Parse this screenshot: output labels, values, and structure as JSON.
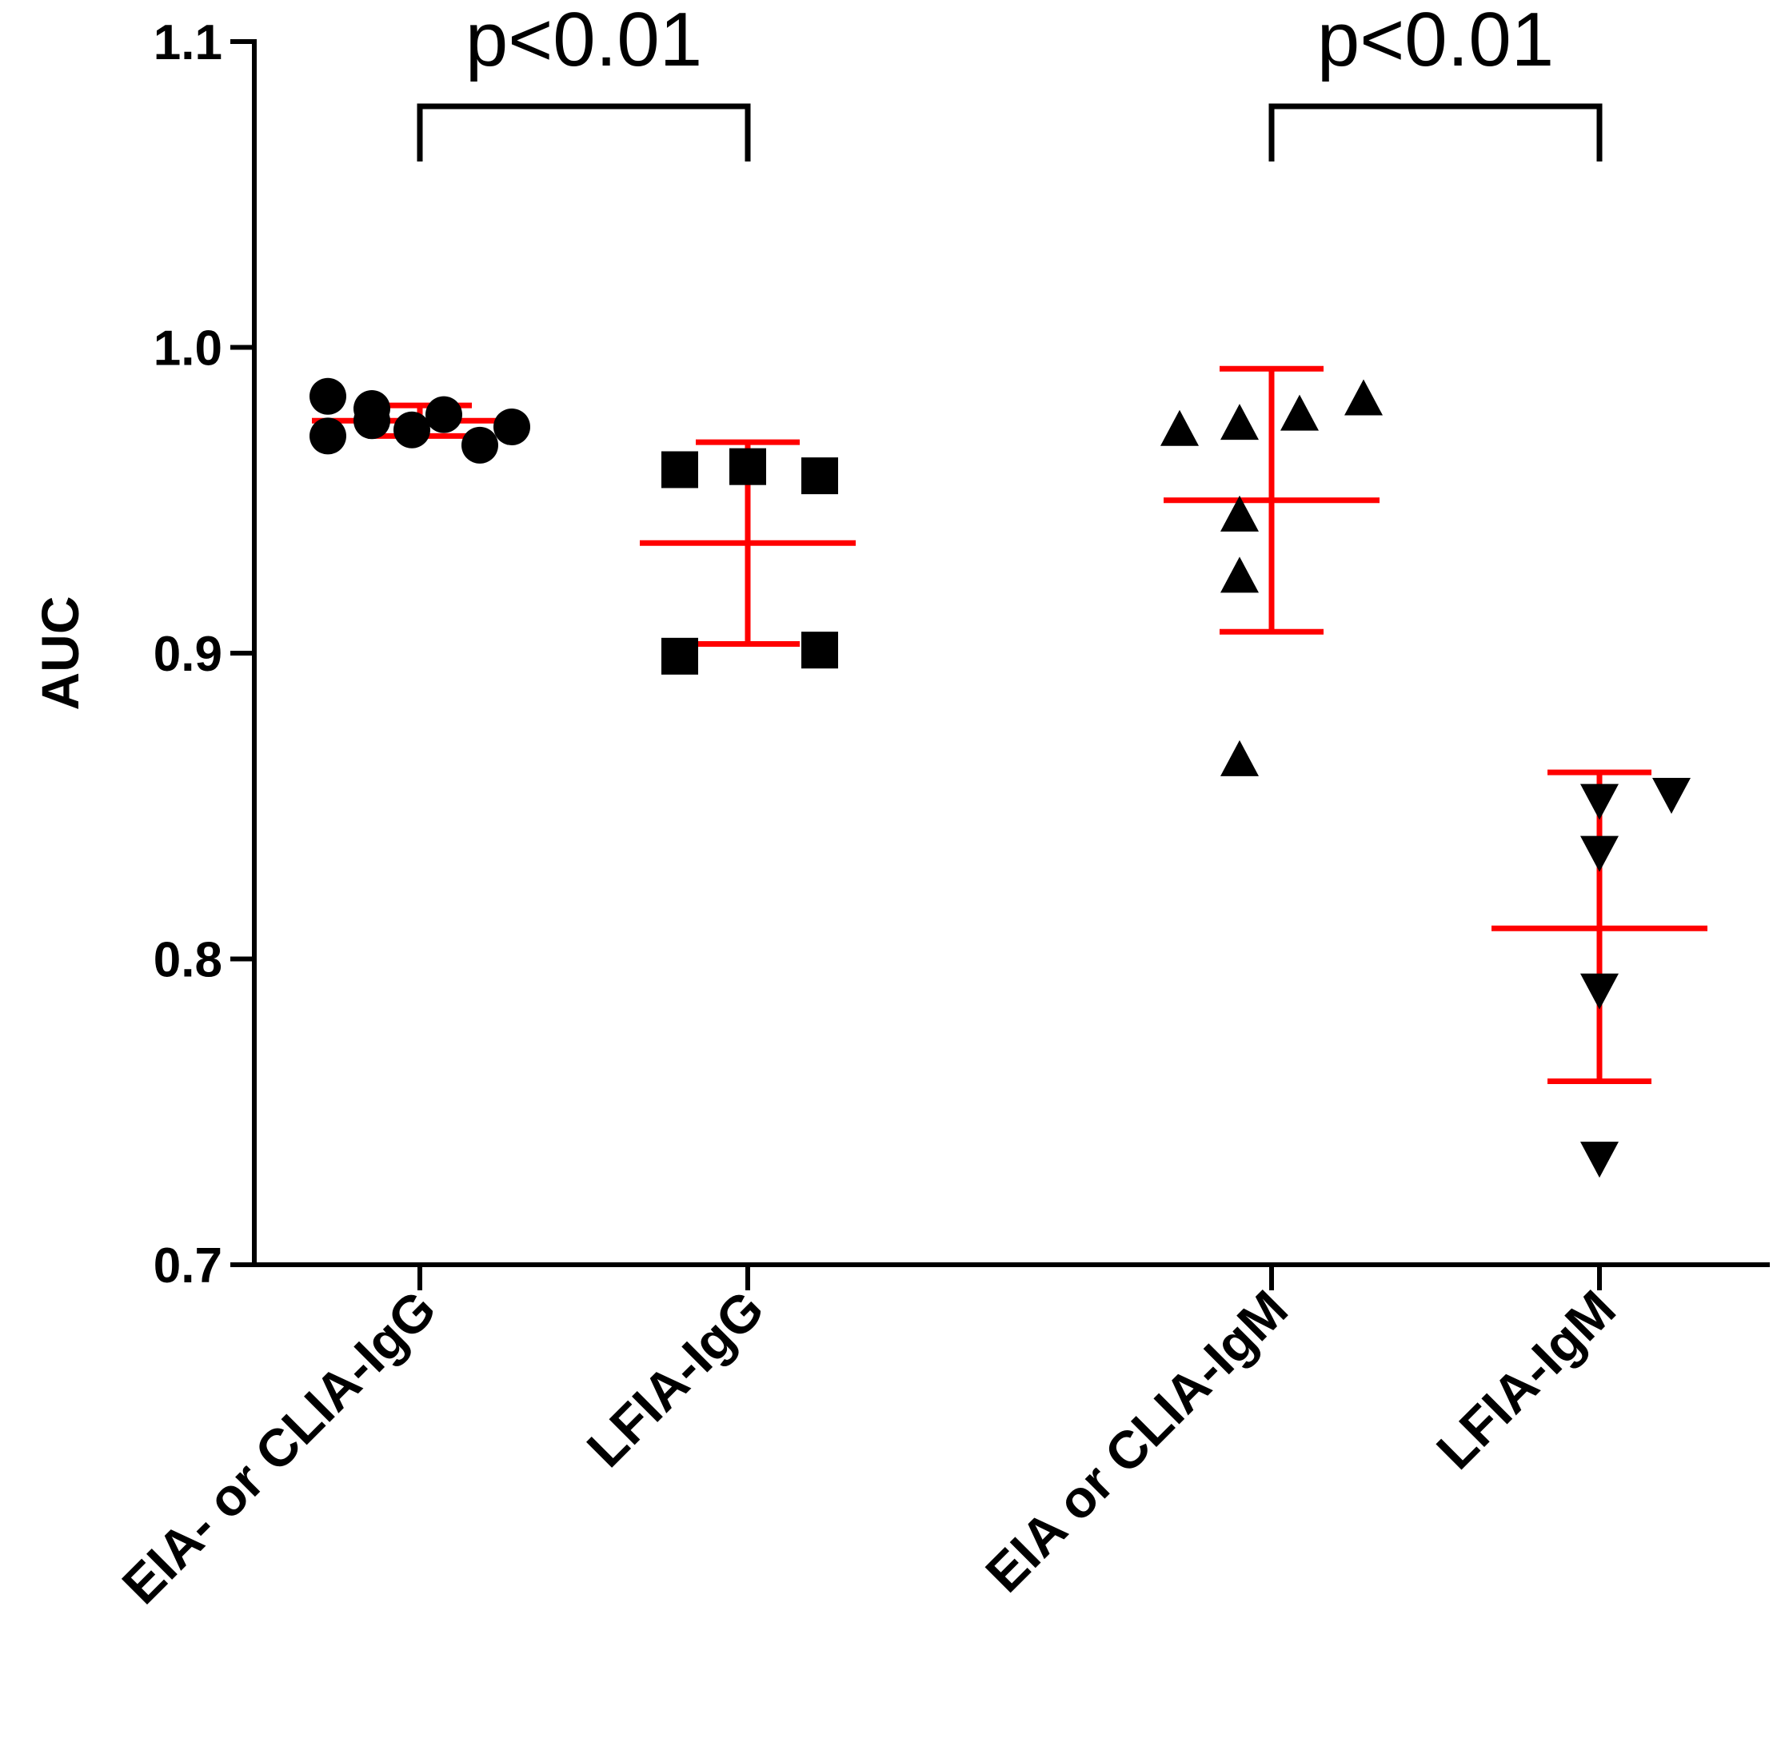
{
  "chart_data": {
    "type": "scatter",
    "ylabel": "AUC",
    "ylim": [
      0.7,
      1.1
    ],
    "yticks": [
      "0.7",
      "0.8",
      "0.9",
      "1.0",
      "1.1"
    ],
    "grid": false,
    "categories": [
      "EIA- or CLIA-IgG",
      "LFIA-IgG",
      "EIA or CLIA-IgM",
      "LFIA-IgM"
    ],
    "series": [
      {
        "category": "EIA- or CLIA-IgG",
        "marker": "circle",
        "points": [
          0.984,
          0.971,
          0.98,
          0.976,
          0.973,
          0.978,
          0.968,
          0.974
        ],
        "mean": 0.976,
        "sd_upper": 0.981,
        "sd_lower": 0.971
      },
      {
        "category": "LFIA-IgG",
        "marker": "square",
        "points": [
          0.96,
          0.961,
          0.958,
          0.899,
          0.901
        ],
        "mean": 0.936,
        "sd_upper": 0.969,
        "sd_lower": 0.903
      },
      {
        "category": "EIA or CLIA-IgM",
        "marker": "triangle-up",
        "points": [
          0.973,
          0.975,
          0.978,
          0.983,
          0.945,
          0.925,
          0.865
        ],
        "mean": 0.95,
        "sd_upper": 0.993,
        "sd_lower": 0.907
      },
      {
        "category": "LFIA-IgM",
        "marker": "triangle-down",
        "points": [
          0.852,
          0.835,
          0.854,
          0.79,
          0.735
        ],
        "mean": 0.81,
        "sd_upper": 0.861,
        "sd_lower": 0.76
      }
    ],
    "annotations": [
      {
        "text": "p<0.01",
        "between": [
          0,
          1
        ]
      },
      {
        "text": "p<0.01",
        "between": [
          2,
          3
        ]
      }
    ],
    "colors": {
      "points": "#000000",
      "stats": "#ff0000"
    }
  }
}
